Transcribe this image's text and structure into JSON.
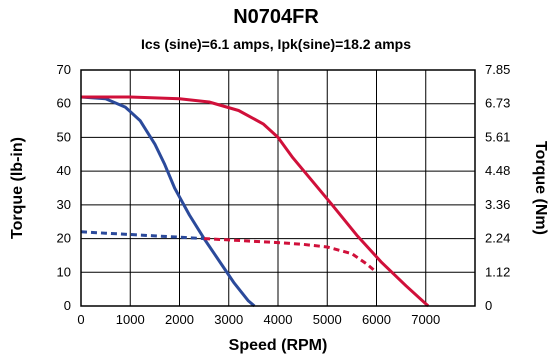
{
  "chart_data": {
    "type": "line",
    "title": "N0704FR",
    "subtitle": "Ics (sine)=6.1 amps, Ipk(sine)=18.2 amps",
    "xlabel": "Speed (RPM)",
    "ylabel_left": "Torque (lb-in)",
    "ylabel_right": "Torque (Nm)",
    "xlim": [
      0,
      8000
    ],
    "ylim": [
      0,
      70
    ],
    "x_ticks": [
      "0",
      "1000",
      "2000",
      "3000",
      "4000",
      "5000",
      "6000",
      "7000"
    ],
    "y_ticks_left": [
      "0",
      "10",
      "20",
      "30",
      "40",
      "50",
      "60",
      "70"
    ],
    "y_ticks_right": [
      "0",
      "1.12",
      "2.24",
      "3.36",
      "4.48",
      "5.61",
      "6.73",
      "7.85"
    ],
    "grid": true,
    "series": [
      {
        "color": "#2b4a9b",
        "style": "solid",
        "x": [
          0,
          500,
          900,
          1200,
          1500,
          1700,
          1900,
          2200,
          2500,
          2800,
          3100,
          3400,
          3520
        ],
        "y": [
          62,
          61.5,
          59,
          55,
          48,
          42,
          35,
          27,
          20,
          13.5,
          7,
          1.5,
          0
        ]
      },
      {
        "color": "#2b4a9b",
        "style": "dashed",
        "x": [
          0,
          500,
          1000,
          1500,
          2000,
          2500
        ],
        "y": [
          22,
          21.6,
          21.2,
          20.8,
          20.4,
          20
        ]
      },
      {
        "color": "#d0103a",
        "style": "solid",
        "x": [
          0,
          1000,
          2000,
          2600,
          3200,
          3700,
          4000,
          4300,
          4700,
          5100,
          5600,
          6100,
          6600,
          7050
        ],
        "y": [
          62,
          62,
          61.5,
          60.5,
          58,
          54,
          50,
          44,
          37,
          30,
          21,
          13,
          6,
          0
        ]
      },
      {
        "color": "#d0103a",
        "style": "dashed",
        "x": [
          2500,
          3000,
          3500,
          4000,
          4500,
          5000,
          5500,
          5800,
          6000
        ],
        "y": [
          20,
          19.6,
          19.2,
          18.8,
          18.3,
          17.5,
          15.5,
          12.5,
          10
        ]
      }
    ]
  }
}
